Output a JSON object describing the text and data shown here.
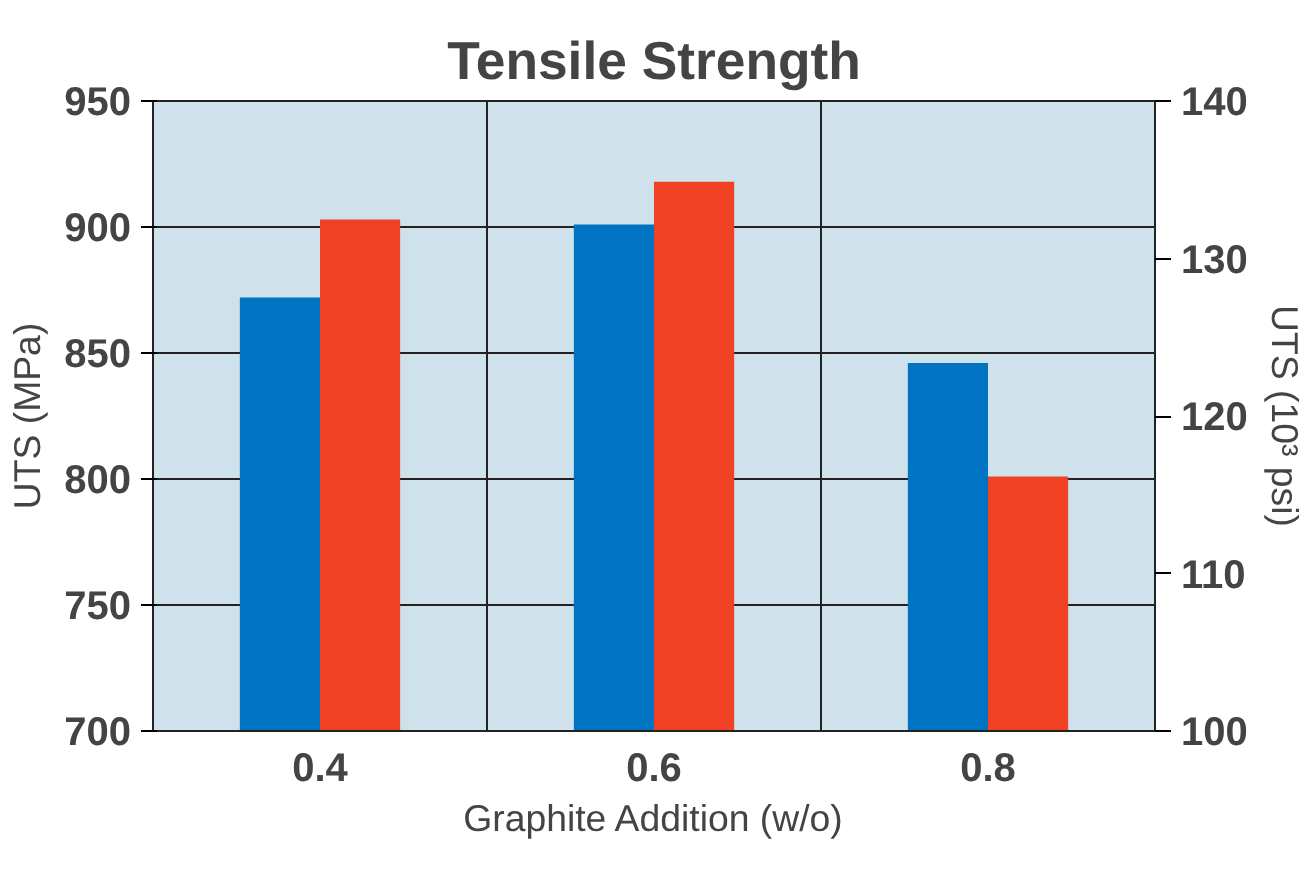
{
  "chart_data": {
    "type": "bar",
    "title": "Tensile Strength",
    "xlabel": "Graphite Addition (w/o)",
    "ylabel": "UTS (MPa)",
    "y2label": "UTS (10³ psi)",
    "categories": [
      "0.4",
      "0.6",
      "0.8"
    ],
    "series": [
      {
        "color": "#0073c2",
        "values": [
          872,
          901,
          846
        ]
      },
      {
        "color": "#f04124",
        "values": [
          903,
          918,
          801
        ]
      }
    ],
    "ylim": [
      700,
      950
    ],
    "yticks": [
      700,
      750,
      800,
      850,
      900,
      950
    ],
    "y2lim": [
      100,
      140
    ],
    "y2ticks": [
      100,
      110,
      120,
      130,
      140
    ],
    "grid": true
  }
}
